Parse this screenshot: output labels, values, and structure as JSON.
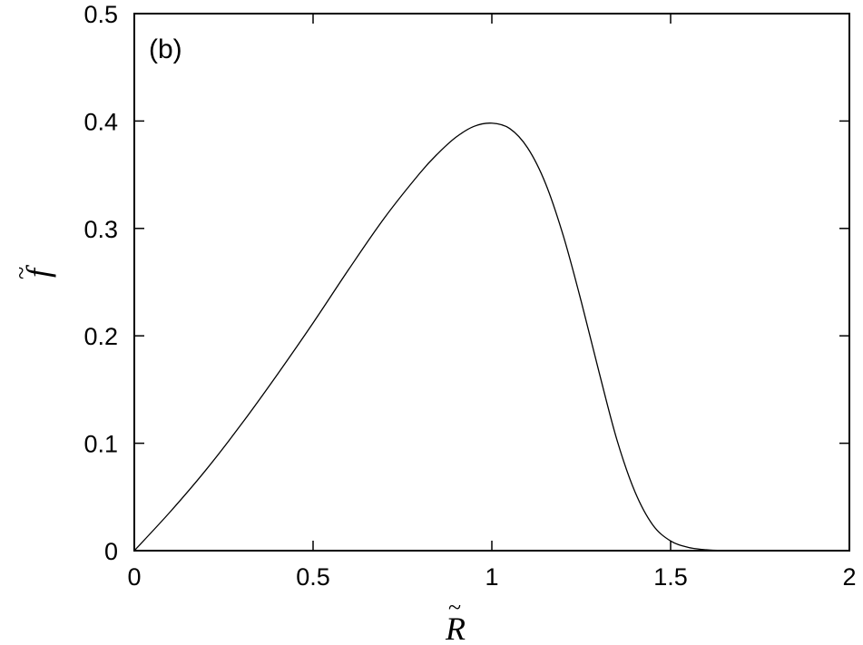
{
  "chart_data": {
    "type": "line",
    "panel_label": "(b)",
    "xlabel": "R",
    "ylabel": "f",
    "label_accent": "~",
    "xlim": [
      0,
      2
    ],
    "ylim": [
      0,
      0.5
    ],
    "xticks": [
      0,
      0.5,
      1,
      1.5,
      2
    ],
    "xtick_labels": [
      "0",
      "0.5",
      "1",
      "1.5",
      "2"
    ],
    "yticks": [
      0,
      0.1,
      0.2,
      0.3,
      0.4,
      0.5
    ],
    "ytick_labels": [
      "0",
      "0.1",
      "0.2",
      "0.3",
      "0.4",
      "0.5"
    ],
    "grid": false,
    "line_color": "#000000",
    "series": [
      {
        "x": [
          0,
          0.1,
          0.2,
          0.3,
          0.4,
          0.5,
          0.6,
          0.7,
          0.8,
          0.85,
          0.9,
          0.95,
          1.0,
          1.05,
          1.1,
          1.15,
          1.2,
          1.25,
          1.3,
          1.35,
          1.4,
          1.45,
          1.5,
          1.55,
          1.6,
          1.65,
          1.7,
          1.8,
          2.0
        ],
        "y": [
          0,
          0.036,
          0.075,
          0.118,
          0.164,
          0.212,
          0.262,
          0.31,
          0.352,
          0.37,
          0.385,
          0.395,
          0.398,
          0.393,
          0.375,
          0.342,
          0.293,
          0.232,
          0.166,
          0.103,
          0.055,
          0.024,
          0.009,
          0.003,
          0.0008,
          0.0001,
          0,
          0,
          0
        ]
      }
    ]
  }
}
